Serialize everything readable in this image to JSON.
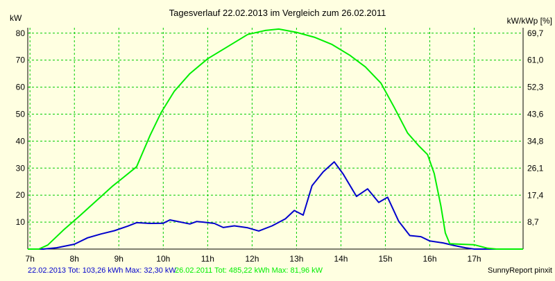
{
  "colors": {
    "background": "#ffffe1",
    "grid": "#00cc00",
    "axis_text": "#000000",
    "series_2013": "#0000cc",
    "series_2011": "#00ee00"
  },
  "chart_data": {
    "type": "line",
    "title": "Tagesverlauf 22.02.2013 im Vergleich zum 26.02.2011",
    "ylabel_left": "kW",
    "ylabel_right": "kW/kWp [%]",
    "xlim": [
      6.95,
      18.1
    ],
    "ylim": [
      0,
      82
    ],
    "x_ticks": [
      7,
      8,
      9,
      10,
      11,
      12,
      13,
      14,
      15,
      16,
      17
    ],
    "x_tick_labels": [
      "7h",
      "8h",
      "9h",
      "10h",
      "11h",
      "12h",
      "13h",
      "14h",
      "15h",
      "16h",
      "17h"
    ],
    "y_ticks_left": [
      10,
      20,
      30,
      40,
      50,
      60,
      70,
      80
    ],
    "y_tick_labels_left": [
      "10",
      "20",
      "30",
      "40",
      "50",
      "60",
      "70",
      "80"
    ],
    "y_ticks_right": [
      8.7,
      17.4,
      26.1,
      34.8,
      43.6,
      52.3,
      61.0,
      69.7
    ],
    "y_tick_labels_right": [
      "8,7",
      "17,4",
      "26,1",
      "34,8",
      "43,6",
      "52,3",
      "61,0",
      "69,7"
    ],
    "grid": true,
    "series": [
      {
        "name": "22.02.2013",
        "color_key": "series_2013",
        "points": [
          [
            6.95,
            0
          ],
          [
            7.3,
            0
          ],
          [
            7.6,
            0.5
          ],
          [
            8.0,
            1.8
          ],
          [
            8.3,
            4.2
          ],
          [
            8.6,
            5.6
          ],
          [
            8.9,
            6.8
          ],
          [
            9.2,
            8.5
          ],
          [
            9.4,
            9.8
          ],
          [
            9.7,
            9.5
          ],
          [
            10.0,
            9.6
          ],
          [
            10.15,
            10.8
          ],
          [
            10.3,
            10.3
          ],
          [
            10.6,
            9.3
          ],
          [
            10.75,
            10.2
          ],
          [
            10.9,
            10.0
          ],
          [
            11.15,
            9.5
          ],
          [
            11.35,
            8.0
          ],
          [
            11.6,
            8.6
          ],
          [
            11.9,
            7.9
          ],
          [
            12.15,
            6.7
          ],
          [
            12.45,
            8.6
          ],
          [
            12.75,
            11.2
          ],
          [
            12.95,
            14.3
          ],
          [
            13.15,
            12.6
          ],
          [
            13.35,
            23.5
          ],
          [
            13.6,
            28.6
          ],
          [
            13.85,
            32.3
          ],
          [
            14.05,
            27.8
          ],
          [
            14.35,
            19.5
          ],
          [
            14.6,
            22.3
          ],
          [
            14.85,
            17.3
          ],
          [
            15.05,
            19.2
          ],
          [
            15.3,
            10.3
          ],
          [
            15.55,
            5.0
          ],
          [
            15.8,
            4.6
          ],
          [
            16.0,
            3.0
          ],
          [
            16.3,
            2.3
          ],
          [
            16.55,
            1.3
          ],
          [
            16.8,
            0.5
          ],
          [
            17.0,
            0
          ],
          [
            18.1,
            0
          ]
        ]
      },
      {
        "name": "26.02.2011",
        "color_key": "series_2011",
        "points": [
          [
            6.95,
            0
          ],
          [
            7.2,
            0
          ],
          [
            7.4,
            1.5
          ],
          [
            7.75,
            7.0
          ],
          [
            8.1,
            12.0
          ],
          [
            8.5,
            18.0
          ],
          [
            8.85,
            23.2
          ],
          [
            9.1,
            26.5
          ],
          [
            9.4,
            30.5
          ],
          [
            9.7,
            42.0
          ],
          [
            9.95,
            50.5
          ],
          [
            10.25,
            58.5
          ],
          [
            10.6,
            65.0
          ],
          [
            11.0,
            70.5
          ],
          [
            11.45,
            75.0
          ],
          [
            11.9,
            79.5
          ],
          [
            12.3,
            81.0
          ],
          [
            12.6,
            81.5
          ],
          [
            13.0,
            80.3
          ],
          [
            13.4,
            78.5
          ],
          [
            13.8,
            75.8
          ],
          [
            14.2,
            71.8
          ],
          [
            14.55,
            67.5
          ],
          [
            14.9,
            61.5
          ],
          [
            15.2,
            52.5
          ],
          [
            15.5,
            43.0
          ],
          [
            15.75,
            38.3
          ],
          [
            15.95,
            35.0
          ],
          [
            16.1,
            28.0
          ],
          [
            16.25,
            16.0
          ],
          [
            16.35,
            6.0
          ],
          [
            16.45,
            2.0
          ],
          [
            16.7,
            1.8
          ],
          [
            17.0,
            1.6
          ],
          [
            17.3,
            0.3
          ],
          [
            17.5,
            0
          ],
          [
            18.1,
            0
          ]
        ]
      }
    ],
    "footer": {
      "series_2013_label": "22.02.2013 Tot: 103,26 kWh Max: 32,30 kW",
      "series_2011_label": "26.02.2011 Tot: 485,22 kWh Max: 81,96 kW",
      "source": "SunnyReport pinxit"
    }
  }
}
